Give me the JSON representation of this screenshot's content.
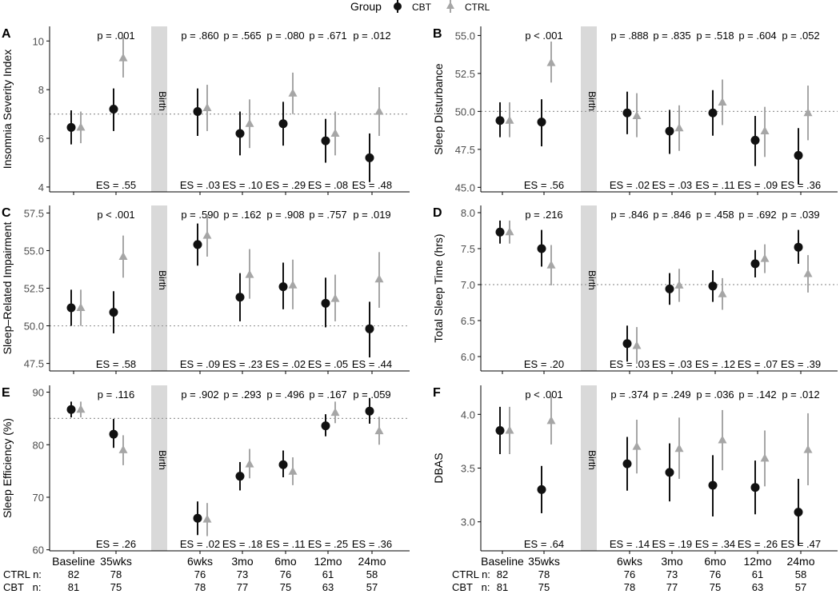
{
  "legend": {
    "title": "Group",
    "items": [
      {
        "label": "CBT",
        "color": "#111111",
        "shape": "circle"
      },
      {
        "label": "CTRL",
        "color": "#a6a6a6",
        "shape": "triangle"
      }
    ]
  },
  "colors": {
    "cbt": "#111111",
    "ctrl": "#a6a6a6",
    "birth_band": "#d9d9d9",
    "reference_line": "#9a9a9a"
  },
  "birth_label": "Birth",
  "timepoints": [
    "Baseline",
    "35wks",
    "6wks",
    "3mo",
    "6mo",
    "12mo",
    "24mo"
  ],
  "n_table": {
    "ctrl_label": "CTRL n:",
    "cbt_label": "CBT   n:",
    "ctrl": [
      "82",
      "78",
      "76",
      "73",
      "76",
      "61",
      "58"
    ],
    "cbt": [
      "81",
      "75",
      "78",
      "77",
      "75",
      "63",
      "57"
    ]
  },
  "chart_data": [
    {
      "panel": "A",
      "type": "scatter",
      "ylabel": "Insomnia Severity Index",
      "ylim": [
        3.8,
        10.6
      ],
      "yticks": [
        4,
        6,
        8,
        10
      ],
      "ytick_labels": [
        "4",
        "6",
        "8",
        "10"
      ],
      "reference_line": 7.0,
      "pvalues": [
        "p = .001",
        "p = .860",
        "p = .565",
        "p = .080",
        "p = .671",
        "p = .012"
      ],
      "es": [
        "ES = .55",
        "ES = .03",
        "ES = .10",
        "ES = .29",
        "ES = .08",
        "ES = .48"
      ],
      "series": [
        {
          "name": "CBT",
          "values": [
            6.45,
            7.2,
            7.1,
            6.2,
            6.6,
            5.9,
            5.2
          ],
          "lower": [
            5.75,
            6.3,
            6.1,
            5.3,
            5.7,
            5.0,
            4.2
          ],
          "upper": [
            7.15,
            8.05,
            8.05,
            7.1,
            7.5,
            6.8,
            6.2
          ]
        },
        {
          "name": "CTRL",
          "values": [
            6.45,
            9.3,
            7.25,
            6.6,
            7.85,
            6.2,
            7.1
          ],
          "lower": [
            5.8,
            8.5,
            6.3,
            5.6,
            7.0,
            5.3,
            6.1
          ],
          "upper": [
            7.1,
            10.2,
            8.2,
            7.6,
            8.7,
            7.1,
            8.1
          ]
        }
      ]
    },
    {
      "panel": "B",
      "type": "scatter",
      "ylabel": "Sleep Disturbance",
      "ylim": [
        44.7,
        55.6
      ],
      "yticks": [
        45,
        47.5,
        50,
        52.5,
        55
      ],
      "ytick_labels": [
        "45.0",
        "47.5",
        "50.0",
        "52.5",
        "55.0"
      ],
      "reference_line": 50.0,
      "pvalues": [
        "p < .001",
        "p = .888",
        "p = .835",
        "p = .518",
        "p = .604",
        "p = .052"
      ],
      "es": [
        "ES = .56",
        "ES = .02",
        "ES = .03",
        "ES = .11",
        "ES = .09",
        "ES = .36"
      ],
      "series": [
        {
          "name": "CBT",
          "values": [
            49.4,
            49.3,
            49.9,
            48.7,
            49.9,
            48.1,
            47.1
          ],
          "lower": [
            48.3,
            47.7,
            48.5,
            47.2,
            48.4,
            46.4,
            45.2
          ],
          "upper": [
            50.6,
            50.8,
            51.3,
            50.1,
            51.4,
            49.7,
            48.9
          ]
        },
        {
          "name": "CTRL",
          "values": [
            49.4,
            53.2,
            49.7,
            48.9,
            50.6,
            48.7,
            49.9
          ],
          "lower": [
            48.3,
            51.9,
            48.3,
            47.4,
            49.1,
            47.0,
            48.1
          ],
          "upper": [
            50.6,
            54.6,
            51.2,
            50.4,
            52.1,
            50.3,
            51.7
          ]
        }
      ]
    },
    {
      "panel": "C",
      "type": "scatter",
      "ylabel": "Sleep–Related Impairment",
      "ylim": [
        47.0,
        58.0
      ],
      "yticks": [
        47.5,
        50,
        52.5,
        55,
        57.5
      ],
      "ytick_labels": [
        "47.5",
        "50.0",
        "52.5",
        "55.0",
        "57.5"
      ],
      "reference_line": 50.0,
      "pvalues": [
        "p < .001",
        "p = .590",
        "p = .162",
        "p = .908",
        "p = .757",
        "p = .019"
      ],
      "es": [
        "ES = .58",
        "ES = .09",
        "ES = .23",
        "ES = .02",
        "ES = .05",
        "ES = .44"
      ],
      "series": [
        {
          "name": "CBT",
          "values": [
            51.2,
            50.9,
            55.4,
            51.9,
            52.6,
            51.5,
            49.8
          ],
          "lower": [
            50.0,
            49.5,
            54.0,
            50.3,
            51.1,
            49.9,
            47.9
          ],
          "upper": [
            52.4,
            52.3,
            56.8,
            53.5,
            54.2,
            53.2,
            51.6
          ]
        },
        {
          "name": "CTRL",
          "values": [
            51.2,
            54.6,
            56.0,
            53.4,
            52.7,
            51.8,
            53.1
          ],
          "lower": [
            50.0,
            53.2,
            54.6,
            51.8,
            51.1,
            50.3,
            51.2
          ],
          "upper": [
            52.4,
            56.0,
            57.4,
            55.1,
            54.4,
            53.4,
            54.9
          ]
        }
      ]
    },
    {
      "panel": "D",
      "type": "scatter",
      "ylabel": "Total Sleep Time (hrs)",
      "ylim": [
        5.8,
        8.1
      ],
      "yticks": [
        6.0,
        6.5,
        7.0,
        7.5,
        8.0
      ],
      "ytick_labels": [
        "6.0",
        "6.5",
        "7.0",
        "7.5",
        "8.0"
      ],
      "reference_line": 7.0,
      "pvalues": [
        "p = .216",
        "p = .846",
        "p = .846",
        "p = .458",
        "p = .692",
        "p = .039"
      ],
      "es": [
        "ES = .20",
        "ES = .03",
        "ES = .03",
        "ES = .12",
        "ES = .07",
        "ES = .39"
      ],
      "series": [
        {
          "name": "CBT",
          "values": [
            7.73,
            7.5,
            6.18,
            6.94,
            6.98,
            7.29,
            7.52
          ],
          "lower": [
            7.57,
            7.25,
            5.93,
            6.72,
            6.76,
            7.1,
            7.29
          ],
          "upper": [
            7.89,
            7.76,
            6.43,
            7.16,
            7.2,
            7.48,
            7.76
          ]
        },
        {
          "name": "CTRL",
          "values": [
            7.73,
            7.27,
            6.15,
            6.99,
            6.87,
            7.36,
            7.15
          ],
          "lower": [
            7.57,
            6.99,
            5.9,
            6.76,
            6.65,
            7.16,
            6.89
          ],
          "upper": [
            7.89,
            7.55,
            6.41,
            7.22,
            7.09,
            7.56,
            7.41
          ]
        }
      ]
    },
    {
      "panel": "E",
      "type": "scatter",
      "ylabel": "Sleep Efficiency (%)",
      "ylim": [
        59.8,
        91.3
      ],
      "yticks": [
        60,
        70,
        80,
        90
      ],
      "ytick_labels": [
        "60",
        "70",
        "80",
        "90"
      ],
      "reference_line": 85.0,
      "pvalues": [
        "p = .116",
        "p = .902",
        "p = .293",
        "p = .496",
        "p = .167",
        "p = .059"
      ],
      "es": [
        "ES = .26",
        "ES = .02",
        "ES = .18",
        "ES = .11",
        "ES = .25",
        "ES = .36"
      ],
      "series": [
        {
          "name": "CBT",
          "values": [
            86.7,
            82.0,
            66.0,
            74.0,
            76.2,
            83.6,
            86.4
          ],
          "lower": [
            85.2,
            79.4,
            62.8,
            71.3,
            73.8,
            81.6,
            84.0
          ],
          "upper": [
            88.2,
            84.9,
            69.2,
            76.7,
            78.9,
            85.8,
            88.9
          ]
        },
        {
          "name": "CTRL",
          "values": [
            86.7,
            79.0,
            65.8,
            76.3,
            74.9,
            86.1,
            82.6
          ],
          "lower": [
            85.2,
            76.1,
            62.6,
            73.6,
            72.3,
            84.1,
            80.0
          ],
          "upper": [
            88.2,
            81.8,
            68.9,
            79.2,
            77.6,
            88.2,
            85.3
          ]
        }
      ]
    },
    {
      "panel": "F",
      "type": "scatter",
      "ylabel": "DBAS",
      "ylim": [
        2.73,
        4.27
      ],
      "yticks": [
        3.0,
        3.5,
        4.0
      ],
      "ytick_labels": [
        "3.0",
        "3.5",
        "4.0"
      ],
      "reference_line": null,
      "pvalues": [
        "p < .001",
        "p = .374",
        "p = .249",
        "p = .036",
        "p = .142",
        "p = .012"
      ],
      "es": [
        "ES = .64",
        "ES = .14",
        "ES = .19",
        "ES = .34",
        "ES = .26",
        "ES = .47"
      ],
      "series": [
        {
          "name": "CBT",
          "values": [
            3.85,
            3.3,
            3.54,
            3.46,
            3.34,
            3.32,
            3.09
          ],
          "lower": [
            3.63,
            3.08,
            3.29,
            3.19,
            3.05,
            3.07,
            2.78
          ],
          "upper": [
            4.07,
            3.52,
            3.79,
            3.73,
            3.62,
            3.57,
            3.4
          ]
        },
        {
          "name": "CTRL",
          "values": [
            3.85,
            3.94,
            3.7,
            3.68,
            3.76,
            3.59,
            3.67
          ],
          "lower": [
            3.63,
            3.72,
            3.45,
            3.4,
            3.48,
            3.33,
            3.34
          ],
          "upper": [
            4.07,
            4.17,
            3.95,
            3.97,
            4.04,
            3.85,
            4.01
          ]
        }
      ]
    }
  ]
}
